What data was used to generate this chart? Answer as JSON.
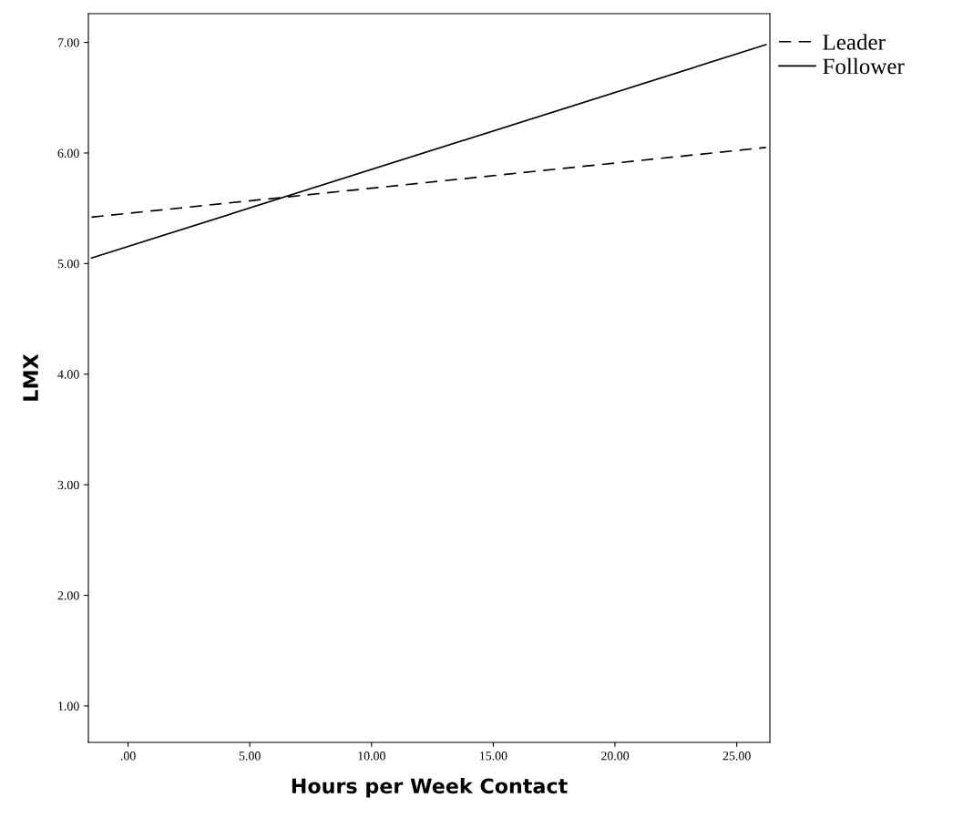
{
  "chart_data": {
    "type": "line",
    "xlabel": "Hours per Week Contact",
    "ylabel": "LMX",
    "xlim": [
      -1.63,
      26.36
    ],
    "ylim": [
      0.67,
      7.26
    ],
    "xticks": [
      {
        "value": 0,
        "label": ".00"
      },
      {
        "value": 5,
        "label": "5.00"
      },
      {
        "value": 10,
        "label": "10.00"
      },
      {
        "value": 15,
        "label": "15.00"
      },
      {
        "value": 20,
        "label": "20.00"
      },
      {
        "value": 25,
        "label": "25.00"
      }
    ],
    "yticks": [
      {
        "value": 1,
        "label": "1.00"
      },
      {
        "value": 2,
        "label": "2.00"
      },
      {
        "value": 3,
        "label": "3.00"
      },
      {
        "value": 4,
        "label": "4.00"
      },
      {
        "value": 5,
        "label": "5.00"
      },
      {
        "value": 6,
        "label": "6.00"
      },
      {
        "value": 7,
        "label": "7.00"
      }
    ],
    "grid": false,
    "legend": "right",
    "x": [
      -1.5,
      26.2
    ],
    "series": [
      {
        "name": "Leader",
        "color": "#000000",
        "line_style": "dashed",
        "values": [
          5.42,
          6.05
        ]
      },
      {
        "name": "Follower",
        "color": "#000000",
        "line_style": "solid",
        "values": [
          5.05,
          6.98
        ]
      }
    ]
  }
}
